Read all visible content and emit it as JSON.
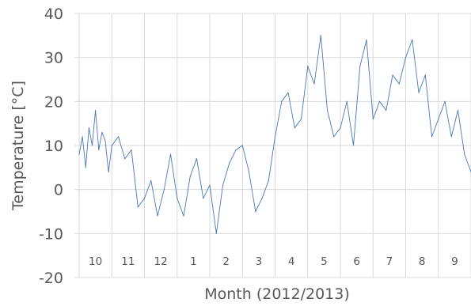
{
  "chart_data": {
    "type": "line",
    "xlabel": "Month (2012/2013)",
    "ylabel": "Temperature [°C]",
    "ylim": [
      -20,
      40
    ],
    "yticks": [
      -20,
      -10,
      0,
      10,
      20,
      30,
      40
    ],
    "grid": true,
    "months": [
      "10",
      "11",
      "12",
      "1",
      "2",
      "3",
      "4",
      "5",
      "6",
      "7",
      "8",
      "9"
    ],
    "series": [
      {
        "color": "#4a76b5",
        "x": [
          0.0,
          0.1,
          0.2,
          0.3,
          0.4,
          0.5,
          0.6,
          0.7,
          0.8,
          0.9,
          1.0,
          1.2,
          1.4,
          1.6,
          1.8,
          2.0,
          2.2,
          2.4,
          2.6,
          2.8,
          3.0,
          3.2,
          3.4,
          3.6,
          3.8,
          4.0,
          4.2,
          4.4,
          4.6,
          4.8,
          5.0,
          5.2,
          5.4,
          5.6,
          5.8,
          6.0,
          6.2,
          6.4,
          6.6,
          6.8,
          7.0,
          7.2,
          7.4,
          7.6,
          7.8,
          8.0,
          8.2,
          8.4,
          8.6,
          8.8,
          9.0,
          9.2,
          9.4,
          9.6,
          9.8,
          10.0,
          10.2,
          10.4,
          10.6,
          10.8,
          11.0,
          11.2,
          11.4,
          11.6,
          11.8,
          12.0
        ],
        "y": [
          8,
          12,
          5,
          14,
          10,
          18,
          9,
          13,
          11,
          4,
          10,
          12,
          7,
          9,
          -4,
          -2,
          2,
          -6,
          0,
          8,
          -2,
          -6,
          3,
          7,
          -2,
          1,
          -10,
          1,
          6,
          9,
          10,
          4,
          -5,
          -2,
          2,
          12,
          20,
          22,
          14,
          16,
          28,
          24,
          35,
          18,
          12,
          14,
          20,
          10,
          28,
          34,
          16,
          20,
          18,
          26,
          24,
          30,
          34,
          22,
          26,
          12,
          16,
          20,
          12,
          18,
          8,
          4
        ]
      }
    ]
  }
}
